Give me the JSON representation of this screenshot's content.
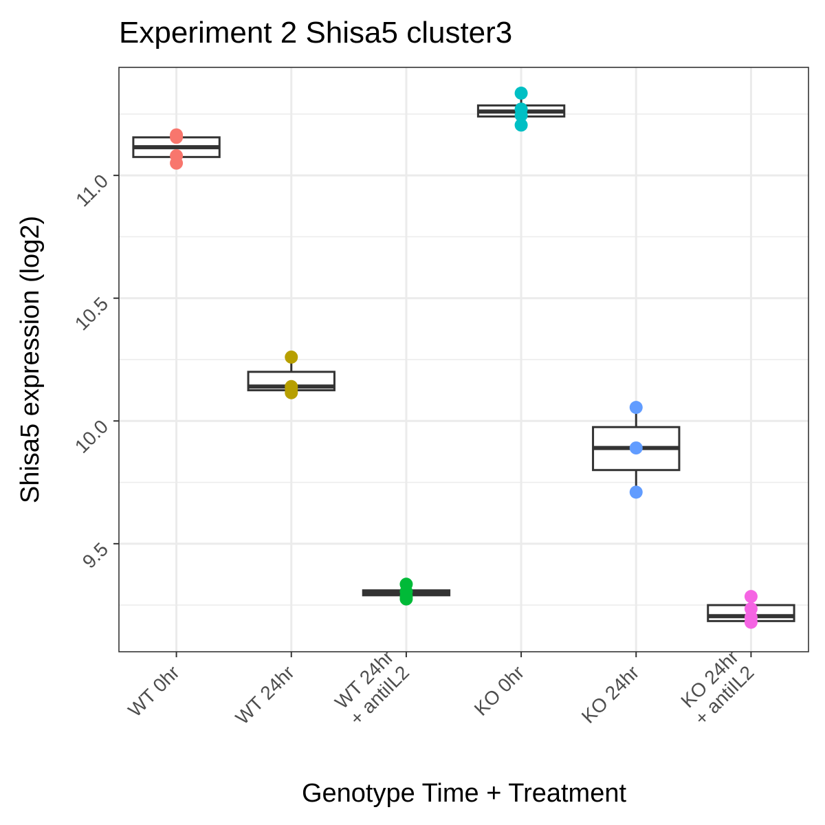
{
  "chart_data": {
    "type": "box",
    "title": "Experiment 2 Shisa5 cluster3",
    "xlabel": "Genotype Time + Treatment",
    "ylabel": "Shisa5 expression (log2)",
    "ylim": [
      9.06,
      11.44
    ],
    "yticks": [
      9.5,
      10.0,
      10.5,
      11.0
    ],
    "ytick_labels": [
      "9.5",
      "10.0",
      "10.5",
      "11.0"
    ],
    "y_minor_ticks": [
      9.25,
      9.75,
      10.25,
      10.75,
      11.25
    ],
    "grid": true,
    "legend": "none",
    "groups": [
      {
        "label_lines": [
          "WT 0hr"
        ],
        "color": "#F8766D",
        "box": {
          "min": 11.05,
          "q1": 11.075,
          "median": 11.115,
          "q3": 11.155,
          "max": 11.165
        },
        "points": [
          11.165,
          11.155,
          11.08,
          11.05
        ]
      },
      {
        "label_lines": [
          "WT 24hr"
        ],
        "color": "#B79F00",
        "box": {
          "min": 10.115,
          "q1": 10.125,
          "median": 10.14,
          "q3": 10.2,
          "max": 10.26
        },
        "points": [
          10.26,
          10.14,
          10.13,
          10.115
        ]
      },
      {
        "label_lines": [
          "WT 24hr",
          "+ antiIL2"
        ],
        "color": "#00BA38",
        "box": {
          "min": 9.275,
          "q1": 9.29,
          "median": 9.3,
          "q3": 9.31,
          "max": 9.335
        },
        "points": [
          9.335,
          9.305,
          9.285,
          9.275
        ]
      },
      {
        "label_lines": [
          "KO 0hr"
        ],
        "color": "#00BFC4",
        "box": {
          "min": 11.205,
          "q1": 11.24,
          "median": 11.26,
          "q3": 11.285,
          "max": 11.335
        },
        "points": [
          11.335,
          11.27,
          11.245,
          11.205
        ]
      },
      {
        "label_lines": [
          "KO 24hr"
        ],
        "color": "#619CFF",
        "box": {
          "min": 9.71,
          "q1": 9.8,
          "median": 9.89,
          "q3": 9.975,
          "max": 10.055
        },
        "points": [
          10.055,
          9.89,
          9.71
        ]
      },
      {
        "label_lines": [
          "KO 24hr",
          "+ antiIL2"
        ],
        "color": "#F564E3",
        "box": {
          "min": 9.18,
          "q1": 9.185,
          "median": 9.205,
          "q3": 9.25,
          "max": 9.285
        },
        "points": [
          9.285,
          9.235,
          9.2,
          9.18
        ]
      }
    ]
  }
}
